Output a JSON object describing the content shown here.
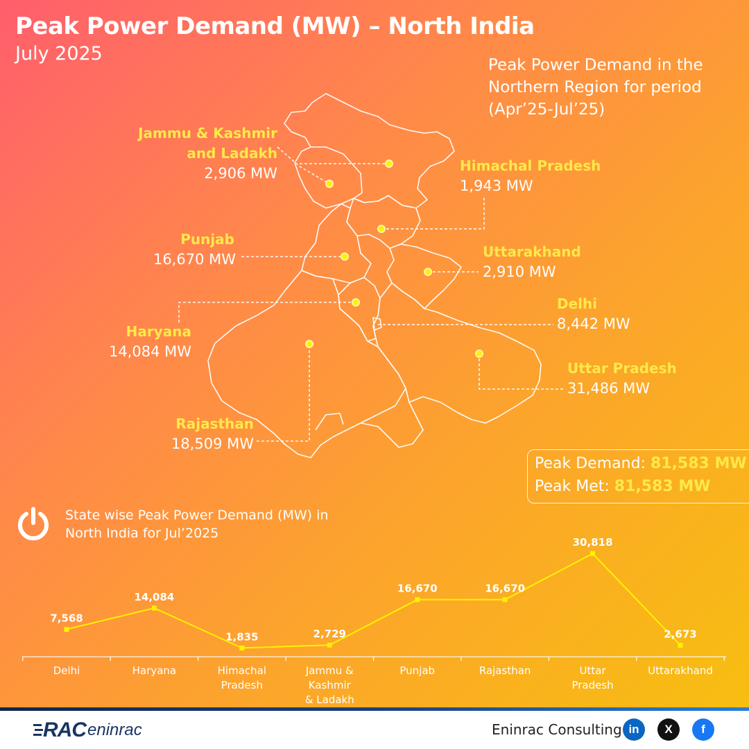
{
  "header": {
    "title": "Peak Power Demand (MW) – North India",
    "subtitle": "July 2025"
  },
  "map": {
    "period_note": "Peak Power Demand in the Northern Region for period (Apr’25-Jul’25)",
    "states": [
      {
        "name_line1": "Jammu & Kashmir",
        "name_line2": "and Ladakh",
        "value": "2,906 MW"
      },
      {
        "name": "Himachal Pradesh",
        "value": "1,943 MW"
      },
      {
        "name": "Punjab",
        "value": "16,670 MW"
      },
      {
        "name": "Uttarakhand",
        "value": "2,910 MW"
      },
      {
        "name": "Delhi",
        "value": "8,442 MW"
      },
      {
        "name": "Haryana",
        "value": "14,084 MW"
      },
      {
        "name": "Uttar Pradesh",
        "value": "31,486 MW"
      },
      {
        "name": "Rajasthan",
        "value": "18,509 MW"
      }
    ]
  },
  "summary": {
    "demand_label": "Peak Demand:",
    "demand_value": "81,583 MW",
    "met_label": "Peak Met:",
    "met_value": "81,583 MW"
  },
  "chart_heading": "State wise Peak Power Demand (MW) in North India for Jul’2025",
  "chart_data": {
    "type": "line",
    "categories": [
      "Delhi",
      "Haryana",
      "Himachal Pradesh",
      "Jammu & Kashmir & Ladakh",
      "Punjab",
      "Rajasthan",
      "Uttar Pradesh",
      "Uttarakhand"
    ],
    "category_lines": [
      [
        "Delhi"
      ],
      [
        "Haryana"
      ],
      [
        "Himachal",
        "Pradesh"
      ],
      [
        "Jammu &",
        "Kashmir",
        "& Ladakh"
      ],
      [
        "Punjab"
      ],
      [
        "Rajasthan"
      ],
      [
        "Uttar",
        "Pradesh"
      ],
      [
        "Uttarakhand"
      ]
    ],
    "values": [
      7568,
      14084,
      1835,
      2729,
      16670,
      16670,
      30818,
      2673
    ],
    "value_labels": [
      "7,568",
      "14,084",
      "1,835",
      "2,729",
      "16,670",
      "16,670",
      "30,818",
      "2,673"
    ],
    "ylim": [
      0,
      31500
    ],
    "color": "#fff200",
    "grid": false
  },
  "footer": {
    "logo_rac": "RAC",
    "logo_text": "eninrac",
    "company": "Eninrac Consulting",
    "social": [
      "in",
      "X",
      "f"
    ]
  },
  "colors": {
    "highlight": "#ffe94a",
    "linkedin": "#0a66c2",
    "x": "#111111",
    "facebook": "#1877f2"
  }
}
